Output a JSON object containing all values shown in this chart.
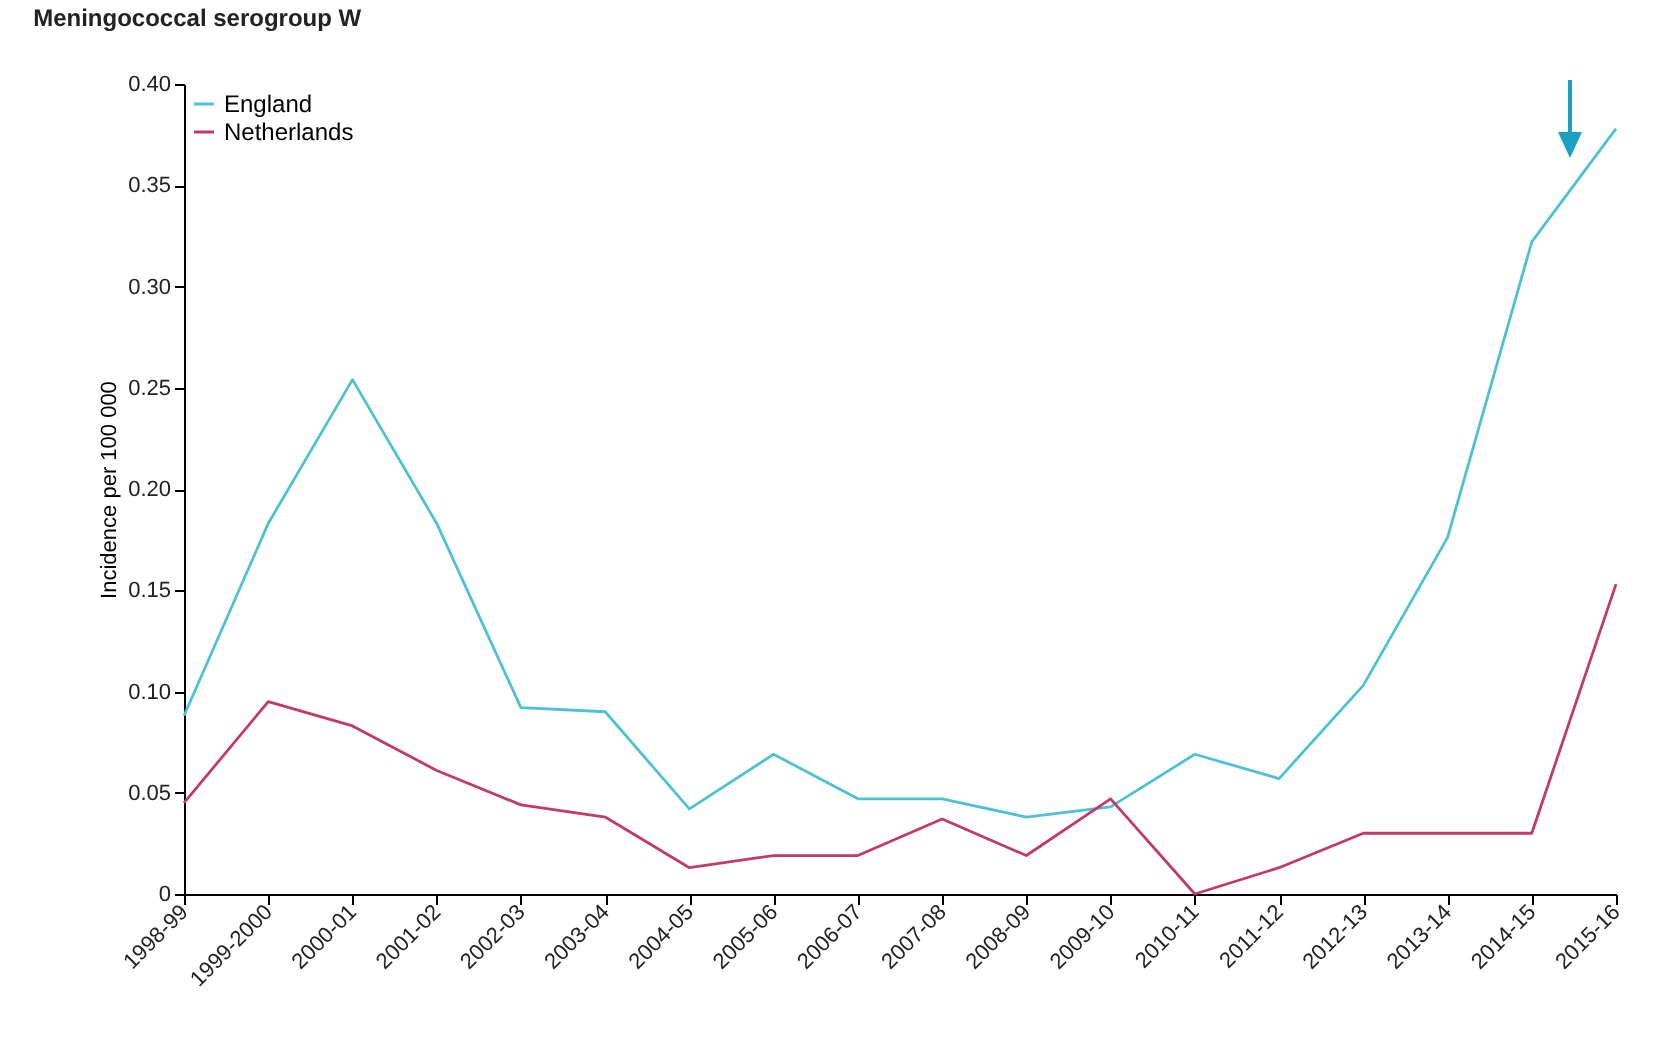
{
  "chart_data": {
    "type": "line",
    "title": "Meningococcal serogroup W",
    "ylabel": "Incidence per 100 000",
    "categories": [
      "1998-99",
      "1999-2000",
      "2000-01",
      "2001-02",
      "2002-03",
      "2003-04",
      "2004-05",
      "2005-06",
      "2006-07",
      "2007-08",
      "2008-09",
      "2009-10",
      "2010-11",
      "2011-12",
      "2012-13",
      "2013-14",
      "2014-15",
      "2015-16"
    ],
    "series": [
      {
        "name": "England",
        "color": "#4fc1d4",
        "values": [
          0.088,
          0.183,
          0.254,
          0.183,
          0.092,
          0.09,
          0.042,
          0.069,
          0.047,
          0.047,
          0.038,
          0.043,
          0.069,
          0.057,
          0.103,
          0.176,
          0.322,
          0.378
        ]
      },
      {
        "name": "Netherlands",
        "color": "#c23a6c",
        "values": [
          0.045,
          0.095,
          0.083,
          0.061,
          0.044,
          0.038,
          0.013,
          0.019,
          0.019,
          0.037,
          0.019,
          0.047,
          0,
          0.013,
          0.03,
          0.03,
          0.03,
          0.153
        ]
      }
    ],
    "ylim": [
      0,
      0.4
    ],
    "yticks": [
      0,
      0.05,
      {
        "value": 0.1,
        "label": "0.10"
      },
      0.15,
      {
        "value": 0.2,
        "label": "0.20"
      },
      0.25,
      {
        "value": 0.3,
        "label": "0.30"
      },
      0.35,
      {
        "value": 0.4,
        "label": "0.40"
      }
    ],
    "grid": false,
    "legend": "top left",
    "marker": "none",
    "line_style": "solid"
  }
}
